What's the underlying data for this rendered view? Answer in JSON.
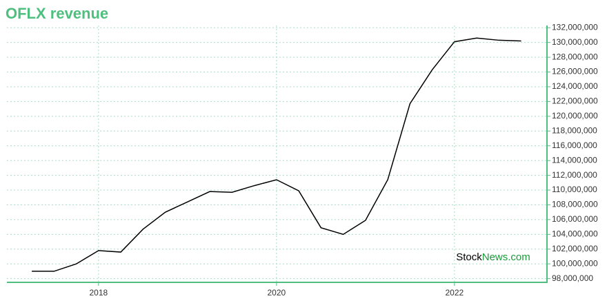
{
  "chart_data": {
    "type": "line",
    "title": "OFLX revenue",
    "x": [
      2017.25,
      2017.5,
      2017.75,
      2018,
      2018.25,
      2018.5,
      2018.75,
      2019,
      2019.25,
      2019.5,
      2019.75,
      2020,
      2020.25,
      2020.5,
      2020.75,
      2021,
      2021.25,
      2021.5,
      2021.75,
      2022,
      2022.25,
      2022.5,
      2022.75
    ],
    "series": [
      {
        "name": "OFLX revenue",
        "color": "#000000",
        "values": [
          99000000,
          99000000,
          100000000,
          101800000,
          101600000,
          104700000,
          107000000,
          108400000,
          109800000,
          109700000,
          110600000,
          111400000,
          109900000,
          104900000,
          104000000,
          105900000,
          111400000,
          121700000,
          126300000,
          130100000,
          130600000,
          130300000,
          130200000
        ]
      }
    ],
    "xlim": [
      2016.97,
      2023.04
    ],
    "xticks": [
      2018,
      2020,
      2022
    ],
    "ylim": [
      97500000,
      132300000
    ],
    "yticks": [
      {
        "value": 98000000,
        "label": "98,000,000"
      },
      {
        "value": 100000000,
        "label": "100,000,000"
      },
      {
        "value": 102000000,
        "label": "102,000,000"
      },
      {
        "value": 104000000,
        "label": "104,000,000"
      },
      {
        "value": 106000000,
        "label": "106,000,000"
      },
      {
        "value": 108000000,
        "label": "108,000,000"
      },
      {
        "value": 110000000,
        "label": "110,000,000"
      },
      {
        "value": 112000000,
        "label": "112,000,000"
      },
      {
        "value": 114000000,
        "label": "114,000,000"
      },
      {
        "value": 116000000,
        "label": "116,000,000"
      },
      {
        "value": 118000000,
        "label": "118,000,000"
      },
      {
        "value": 120000000,
        "label": "120,000,000"
      },
      {
        "value": 122000000,
        "label": "122,000,000"
      },
      {
        "value": 124000000,
        "label": "124,000,000"
      },
      {
        "value": 126000000,
        "label": "126,000,000"
      },
      {
        "value": 128000000,
        "label": "128,000,000"
      },
      {
        "value": 130000000,
        "label": "130,000,000"
      },
      {
        "value": 132000000,
        "label": "132,000,000"
      }
    ],
    "grid": true,
    "axis_color": "#4fbf7f",
    "watermark": {
      "part1": "Stock",
      "part2": "News.com"
    }
  }
}
